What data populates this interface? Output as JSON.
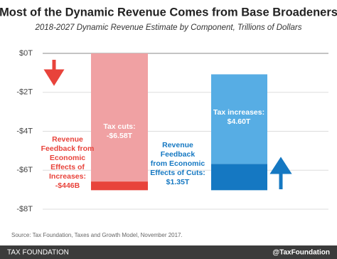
{
  "chart_data": {
    "type": "waterfall",
    "title": "Most of the Dynamic Revenue Comes from Base Broadeners",
    "subtitle": "2018-2027 Dynamic Revenue Estimate by Component, Trillions of Dollars",
    "ylim": [
      -8,
      0
    ],
    "yticks": [
      {
        "value": 0,
        "label": "$0T"
      },
      {
        "value": -2,
        "label": "-$2T"
      },
      {
        "value": -4,
        "label": "-$4T"
      },
      {
        "value": -6,
        "label": "-$6T"
      },
      {
        "value": -8,
        "label": "-$8T"
      }
    ],
    "grid": true,
    "bars": [
      {
        "segments": [
          {
            "value": -6.58,
            "value_label": "-$6.58T",
            "label_lines": [
              "Tax cuts:"
            ],
            "color": "#f0a1a3"
          },
          {
            "value": -0.446,
            "value_label": "-$446B",
            "label_lines": [
              "Revenue",
              "Feedback from",
              "Economic",
              "Effects of",
              "Increases:"
            ],
            "color": "#e8433b"
          }
        ]
      },
      {
        "segments": [
          {
            "value": 1.35,
            "value_label": "$1.35T",
            "label_lines": [
              "Revenue",
              "Feedback",
              "from Economic",
              "Effects of Cuts:"
            ],
            "color": "#1578c2"
          },
          {
            "value": 4.6,
            "value_label": "$4.60T",
            "label_lines": [
              "Tax increases:"
            ],
            "color": "#57ade4"
          }
        ]
      }
    ],
    "source": "Source: Tax Foundation, Taxes and Growth Model, November 2017."
  },
  "footer": {
    "left": "TAX FOUNDATION",
    "right": "@TaxFoundation"
  }
}
